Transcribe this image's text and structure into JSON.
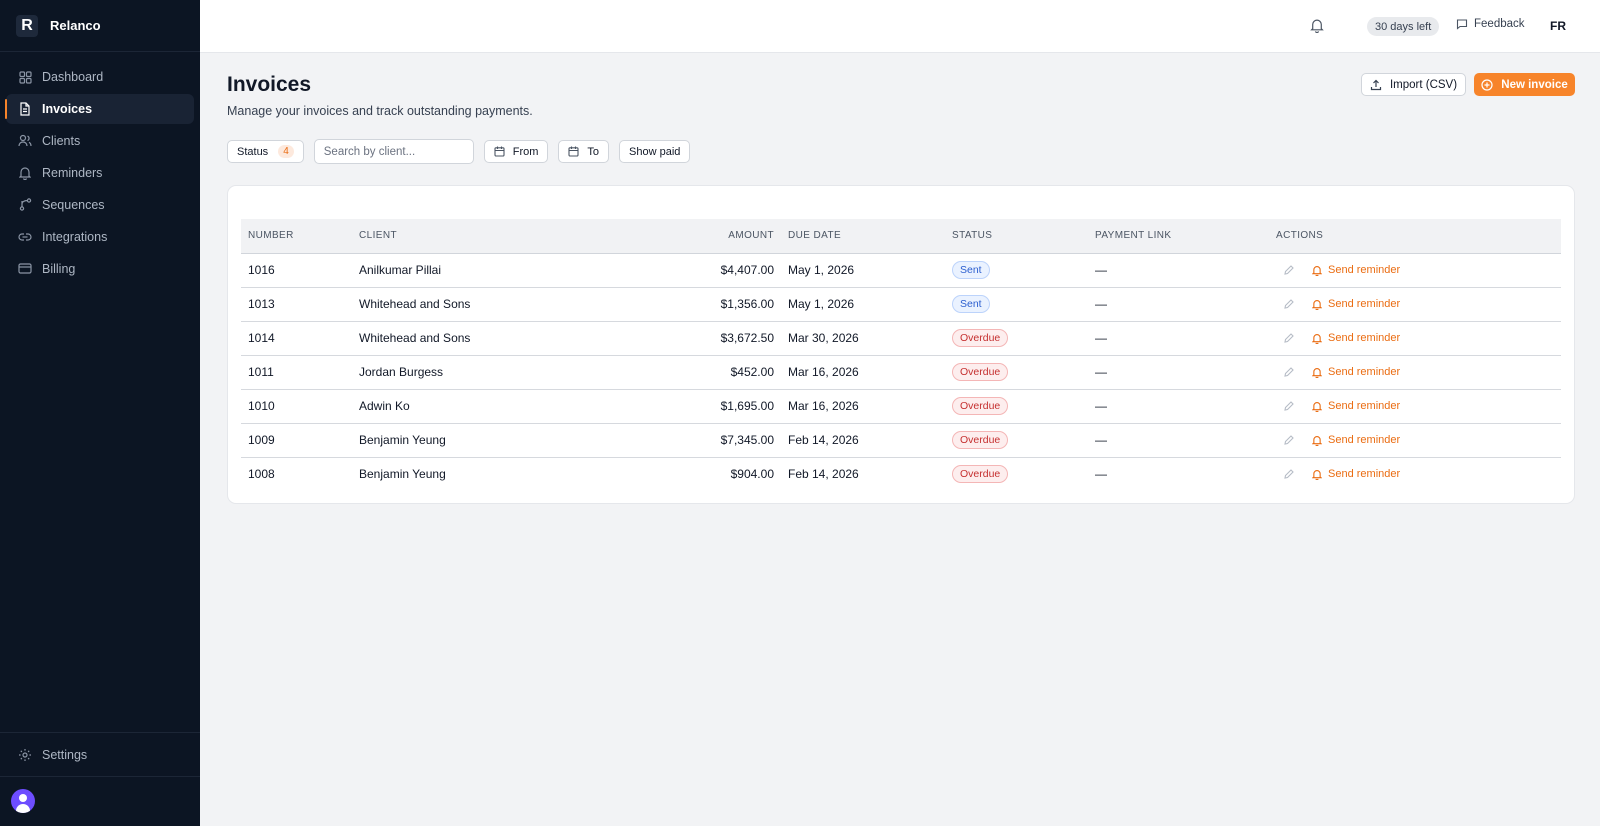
{
  "app": {
    "logo_letter": "R",
    "name": "Relanco"
  },
  "sidebar": {
    "items": [
      {
        "label": "Dashboard",
        "icon": "grid-icon"
      },
      {
        "label": "Invoices",
        "icon": "document-icon",
        "active": true
      },
      {
        "label": "Clients",
        "icon": "users-icon"
      },
      {
        "label": "Reminders",
        "icon": "bell-icon"
      },
      {
        "label": "Sequences",
        "icon": "branch-icon"
      },
      {
        "label": "Integrations",
        "icon": "link-icon"
      },
      {
        "label": "Billing",
        "icon": "card-icon"
      }
    ],
    "settings_label": "Settings"
  },
  "topbar": {
    "trial_badge": "30 days left",
    "feedback_label": "Feedback",
    "language": "FR"
  },
  "page": {
    "title": "Invoices",
    "subtitle": "Manage your invoices and track outstanding payments.",
    "import_label": "Import (CSV)",
    "new_label": "New invoice"
  },
  "filters": {
    "status_label": "Status",
    "status_count": "4",
    "search_placeholder": "Search by client...",
    "from_label": "From",
    "to_label": "To",
    "show_paid_label": "Show paid"
  },
  "table": {
    "headers": [
      "NUMBER",
      "CLIENT",
      "AMOUNT",
      "DUE DATE",
      "STATUS",
      "PAYMENT LINK",
      "ACTIONS"
    ],
    "action_label": "Send reminder",
    "rows": [
      {
        "number": "1016",
        "client": "Anilkumar Pillai",
        "amount": "$4,407.00",
        "due": "May 1, 2026",
        "status": "Sent",
        "link": "—"
      },
      {
        "number": "1013",
        "client": "Whitehead and Sons",
        "amount": "$1,356.00",
        "due": "May 1, 2026",
        "status": "Sent",
        "link": "—"
      },
      {
        "number": "1014",
        "client": "Whitehead and Sons",
        "amount": "$3,672.50",
        "due": "Mar 30, 2026",
        "status": "Overdue",
        "link": "—"
      },
      {
        "number": "1011",
        "client": "Jordan Burgess",
        "amount": "$452.00",
        "due": "Mar 16, 2026",
        "status": "Overdue",
        "link": "—"
      },
      {
        "number": "1010",
        "client": "Adwin Ko",
        "amount": "$1,695.00",
        "due": "Mar 16, 2026",
        "status": "Overdue",
        "link": "—"
      },
      {
        "number": "1009",
        "client": "Benjamin Yeung",
        "amount": "$7,345.00",
        "due": "Feb 14, 2026",
        "status": "Overdue",
        "link": "—"
      },
      {
        "number": "1008",
        "client": "Benjamin Yeung",
        "amount": "$904.00",
        "due": "Feb 14, 2026",
        "status": "Overdue",
        "link": "—"
      }
    ]
  },
  "colors": {
    "accent": "#f7842a",
    "sidebar_bg": "#0c1523",
    "sent": "#2c5fcf",
    "overdue": "#c53030"
  }
}
